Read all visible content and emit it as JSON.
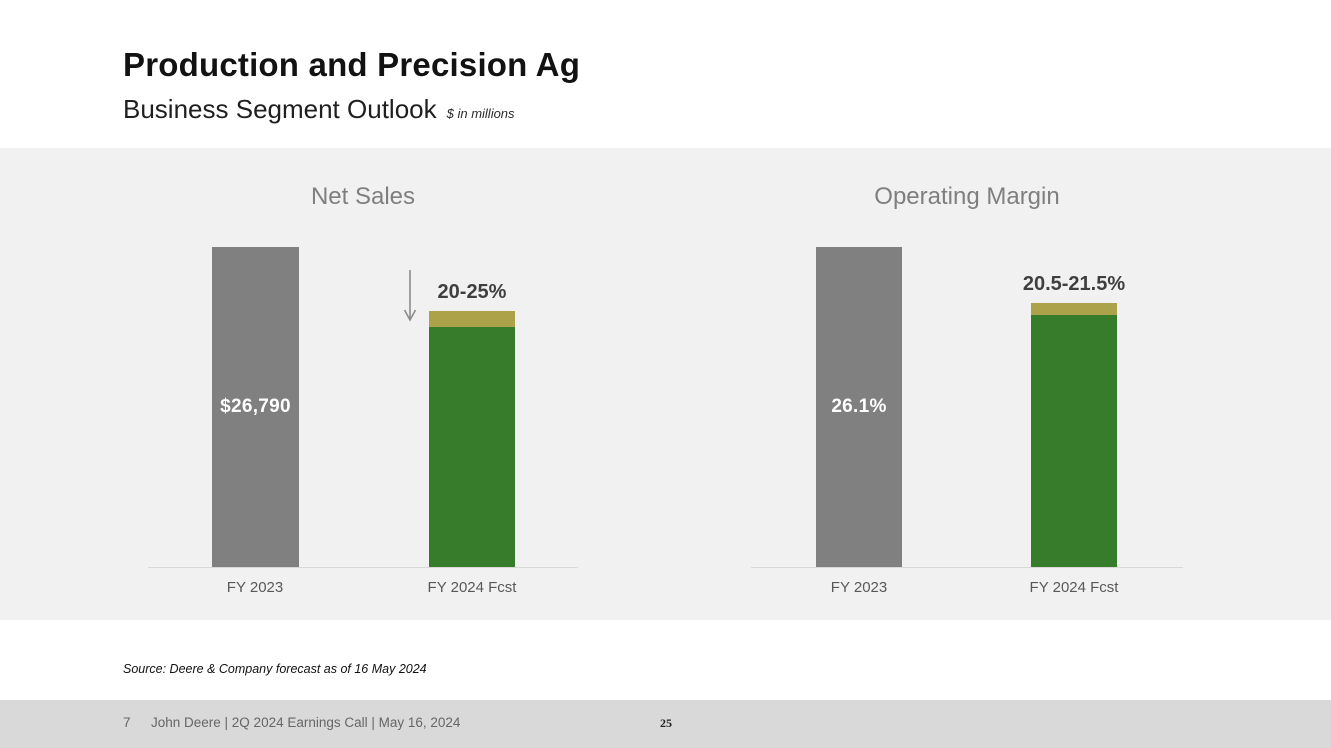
{
  "slide": {
    "title": "Production and Precision Ag",
    "subtitle": "Business Segment Outlook",
    "unit_note": "$ in millions",
    "source_note": "Source: Deere & Company forecast as of 16 May 2024"
  },
  "footer": {
    "slide_number": "7",
    "caption": "John Deere | 2Q 2024 Earnings Call | May 16, 2024",
    "page_number": "25"
  },
  "colors": {
    "actual_bar": "#808080",
    "forecast_bar": "#367C2B",
    "forecast_range_cap": "#ABA24A",
    "chart_band_background": "#F1F1F1",
    "footer_background": "#D9D9D9",
    "chart_title_text": "#7f7f7f",
    "annotation_text": "#3f3f3f"
  },
  "chart_data": [
    {
      "type": "bar",
      "title": "Net Sales",
      "categories": [
        "FY 2023",
        "FY 2024 Fcst"
      ],
      "bars": [
        {
          "category": "FY 2023",
          "value": 26790,
          "label": "$26,790",
          "style": "actual-gray"
        },
        {
          "category": "FY 2024 Fcst",
          "value_range": [
            20093,
            21432
          ],
          "label": "20-25%",
          "change_direction": "down",
          "has_arrow": true,
          "style": "forecast-green-with-range-cap"
        }
      ],
      "ylim": [
        0,
        26790
      ],
      "y_axis_visible": false,
      "grid": false,
      "legend": false
    },
    {
      "type": "bar",
      "title": "Operating Margin",
      "categories": [
        "FY 2023",
        "FY 2024 Fcst"
      ],
      "bars": [
        {
          "category": "FY 2023",
          "value": 26.1,
          "label": "26.1%",
          "style": "actual-gray"
        },
        {
          "category": "FY 2024 Fcst",
          "value_range": [
            20.5,
            21.5
          ],
          "label": "20.5-21.5%",
          "has_arrow": false,
          "style": "forecast-green-with-range-cap"
        }
      ],
      "ylim": [
        0,
        26.1
      ],
      "y_axis_visible": false,
      "grid": false,
      "legend": false
    }
  ]
}
